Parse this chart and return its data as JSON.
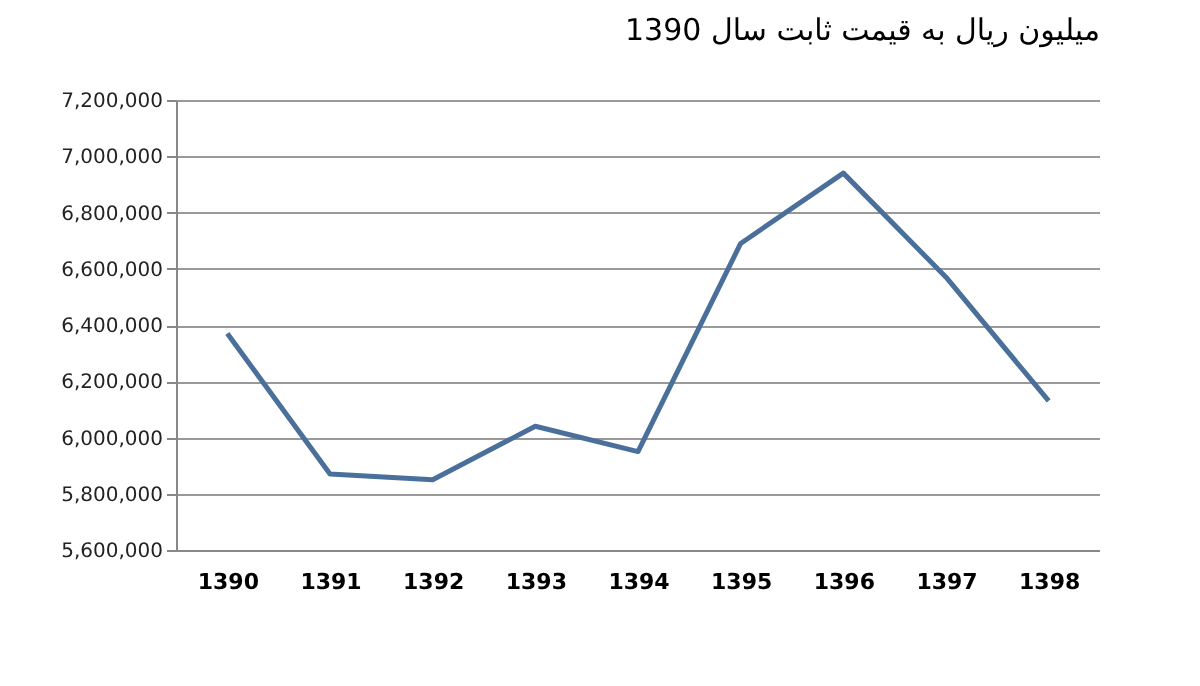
{
  "chart_data": {
    "type": "line",
    "title": "میلیون ریال به قیمت ثابت سال 1390",
    "categories": [
      "1390",
      "1391",
      "1392",
      "1393",
      "1394",
      "1395",
      "1396",
      "1397",
      "1398"
    ],
    "series": [
      {
        "color": "#4a6f9a",
        "values": [
          6370000,
          5870000,
          5850000,
          6040000,
          5950000,
          6690000,
          6940000,
          6570000,
          6130000
        ]
      }
    ],
    "ylim": [
      5600000,
      7200000
    ],
    "yticks": [
      {
        "value": 5600000,
        "label": "5,600,000"
      },
      {
        "value": 5800000,
        "label": "5,800,000"
      },
      {
        "value": 6000000,
        "label": "6,000,000"
      },
      {
        "value": 6200000,
        "label": "6,200,000"
      },
      {
        "value": 6400000,
        "label": "6,400,000"
      },
      {
        "value": 6600000,
        "label": "6,600,000"
      },
      {
        "value": 6800000,
        "label": "6,800,000"
      },
      {
        "value": 7000000,
        "label": "7,000,000"
      },
      {
        "value": 7200000,
        "label": "7,200,000"
      }
    ],
    "grid": "y",
    "legend": false,
    "marker": "none",
    "line_style": "solid"
  }
}
